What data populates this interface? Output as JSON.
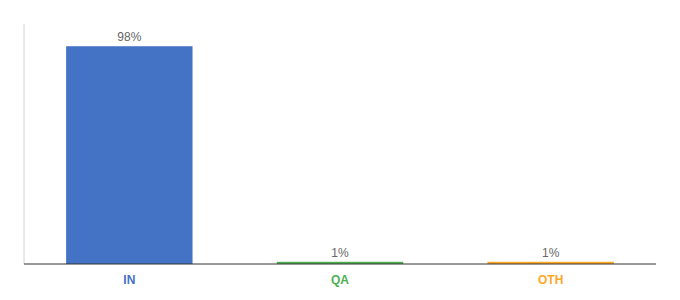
{
  "chart_data": {
    "type": "bar",
    "categories": [
      "IN",
      "QA",
      "OTH"
    ],
    "values": [
      98,
      1,
      1
    ],
    "value_labels": [
      "98%",
      "1%",
      "1%"
    ],
    "colors": [
      "#4472c4",
      "#4caf50",
      "#ffa726"
    ],
    "ylim": [
      0,
      108
    ],
    "data_labels": true,
    "tick_labels": "x"
  }
}
